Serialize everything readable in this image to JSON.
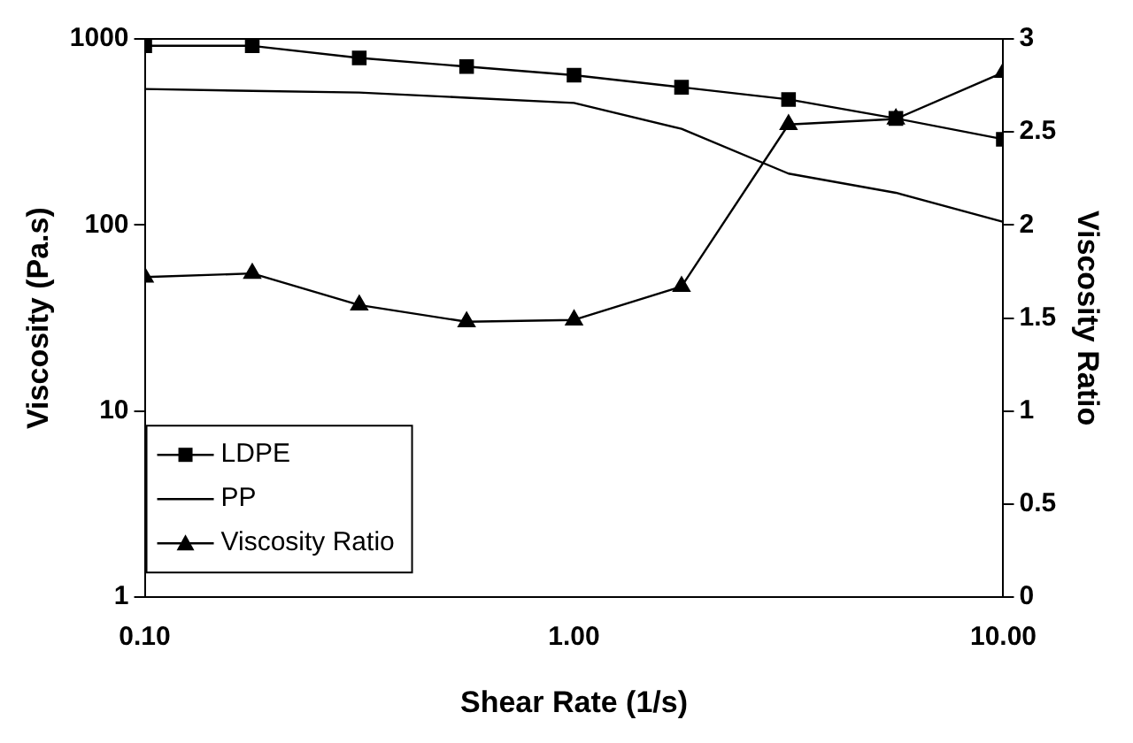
{
  "chart_data": {
    "type": "line",
    "xlabel": "Shear Rate (1/s)",
    "ylabel": "Viscosity (Pa.s)",
    "y2label": "Viscosity Ratio",
    "x": [
      0.1,
      0.178,
      0.316,
      0.562,
      1,
      1.78,
      3.16,
      5.62,
      10
    ],
    "log": "xy",
    "xlim": [
      0.1,
      10
    ],
    "xticks": [
      {
        "value": 0.1,
        "label": "0.10"
      },
      {
        "value": 1,
        "label": "1.00"
      },
      {
        "value": 10,
        "label": "10.00"
      }
    ],
    "ylim": [
      1,
      1000
    ],
    "yticks": [
      1,
      10,
      100,
      1000
    ],
    "y2lim": [
      0,
      3
    ],
    "y2ticks": [
      0,
      0.5,
      1,
      1.5,
      2,
      2.5,
      3
    ],
    "grid": false,
    "legend": "bottom left",
    "line_style": "solid",
    "series": [
      {
        "name": "LDPE",
        "color": "#000000",
        "marker": "square",
        "values": [
          918,
          918,
          790,
          710,
          638,
          550,
          473,
          374,
          289
        ]
      },
      {
        "name": "PP",
        "color": "#000000",
        "marker": "none",
        "values": [
          538,
          526,
          515,
          483,
          453,
          329,
          189,
          149,
          104
        ]
      },
      {
        "name": "Viscosity Ratio",
        "color": "#000000",
        "marker": "triangle",
        "axis": "y2",
        "values": [
          1.72,
          1.74,
          1.57,
          1.48,
          1.49,
          1.67,
          2.54,
          2.57,
          2.82
        ]
      }
    ]
  }
}
